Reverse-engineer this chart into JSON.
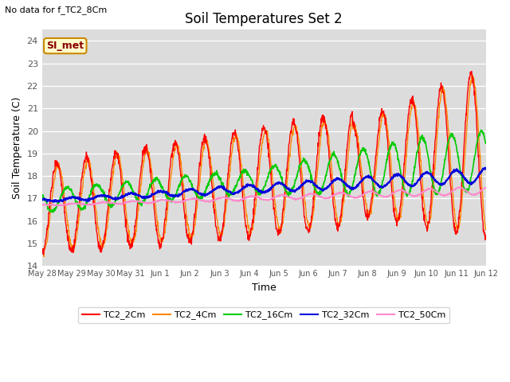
{
  "title": "Soil Temperatures Set 2",
  "subtitle": "No data for f_TC2_8Cm",
  "xlabel": "Time",
  "ylabel": "Soil Temperature (C)",
  "ylim": [
    14.0,
    24.5
  ],
  "yticks": [
    14.0,
    15.0,
    16.0,
    17.0,
    18.0,
    19.0,
    20.0,
    21.0,
    22.0,
    23.0,
    24.0
  ],
  "bg_color": "#dcdcdc",
  "plot_bg": "#dcdcdc",
  "series_colors": {
    "TC2_2Cm": "#ff0000",
    "TC2_4Cm": "#ff8800",
    "TC2_16Cm": "#00cc00",
    "TC2_32Cm": "#0000dd",
    "TC2_50Cm": "#ff88cc"
  },
  "xtick_labels": [
    "May 28",
    "May 29",
    "May 30",
    "May 31",
    "Jun 1",
    "Jun 2",
    "Jun 3",
    "Jun 4",
    "Jun 5",
    "Jun 6",
    "Jun 7",
    "Jun 8",
    "Jun 9",
    "Jun 10",
    "Jun 11",
    "Jun 12"
  ],
  "annotation_box": "SI_met",
  "annotation_color": "#880000"
}
